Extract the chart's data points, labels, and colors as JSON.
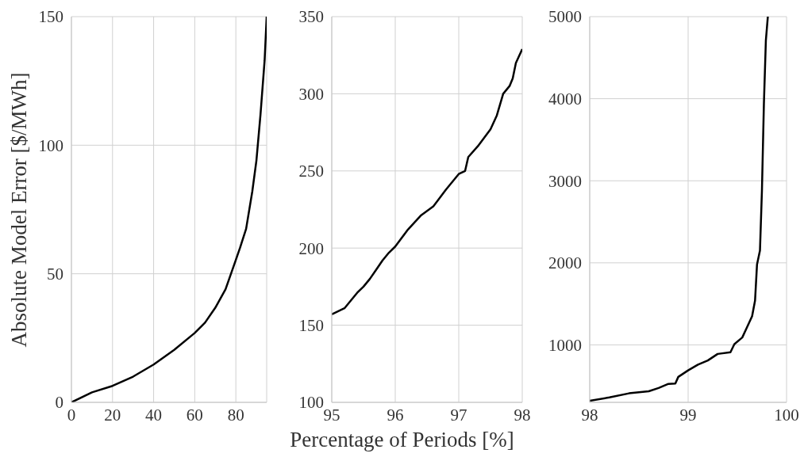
{
  "chart_data": [
    {
      "type": "line",
      "ylabel": "Absolute Model Error [$/MWh]",
      "x": [
        0,
        10,
        20,
        30,
        40,
        50,
        60,
        65,
        70,
        75,
        80,
        82,
        85,
        88,
        90,
        92,
        94,
        95
      ],
      "series": [
        {
          "color": "#000000",
          "values": [
            0,
            3.9,
            6.4,
            10,
            14.7,
            20.4,
            27,
            31,
            36.8,
            44,
            55.4,
            60,
            67.5,
            82,
            94,
            112,
            133,
            150
          ]
        }
      ],
      "xlim": [
        0,
        95
      ],
      "ylim": [
        0,
        150
      ],
      "xticks": [
        0,
        20,
        40,
        60,
        80
      ],
      "yticks": [
        0,
        50,
        100,
        150
      ],
      "grid": true
    },
    {
      "type": "line",
      "xlabel": "Percentage of Periods [%]",
      "x": [
        95.0,
        95.2,
        95.4,
        95.5,
        95.6,
        95.7,
        95.8,
        95.9,
        96.0,
        96.2,
        96.4,
        96.6,
        96.8,
        97.0,
        97.1,
        97.15,
        97.3,
        97.5,
        97.6,
        97.7,
        97.8,
        97.85,
        97.9,
        98.0
      ],
      "series": [
        {
          "color": "#000000",
          "values": [
            157,
            161,
            171,
            175,
            180,
            186,
            192,
            197,
            201,
            212,
            221,
            227,
            238,
            248,
            250,
            259,
            266,
            277,
            286,
            300,
            305,
            310,
            320,
            329
          ]
        }
      ],
      "xlim": [
        95,
        98
      ],
      "ylim": [
        100,
        350
      ],
      "xticks": [
        95,
        96,
        97,
        98
      ],
      "yticks": [
        100,
        150,
        200,
        250,
        300,
        350
      ],
      "grid": true
    },
    {
      "type": "line",
      "x": [
        98.0,
        98.2,
        98.4,
        98.6,
        98.7,
        98.8,
        98.87,
        98.9,
        99.0,
        99.1,
        99.2,
        99.3,
        99.43,
        99.47,
        99.55,
        99.6,
        99.65,
        99.68,
        99.7,
        99.73,
        99.75,
        99.77,
        99.79,
        99.81
      ],
      "series": [
        {
          "color": "#000000",
          "values": [
            320,
            360,
            410,
            435,
            475,
            525,
            530,
            610,
            690,
            760,
            810,
            890,
            910,
            1010,
            1090,
            1220,
            1350,
            1540,
            1980,
            2150,
            2880,
            3940,
            4710,
            5000
          ]
        }
      ],
      "xlim": [
        98,
        100
      ],
      "ylim": [
        300,
        5000
      ],
      "xticks": [
        98,
        99,
        100
      ],
      "yticks": [
        1000,
        2000,
        3000,
        4000,
        5000
      ],
      "grid": true
    }
  ]
}
